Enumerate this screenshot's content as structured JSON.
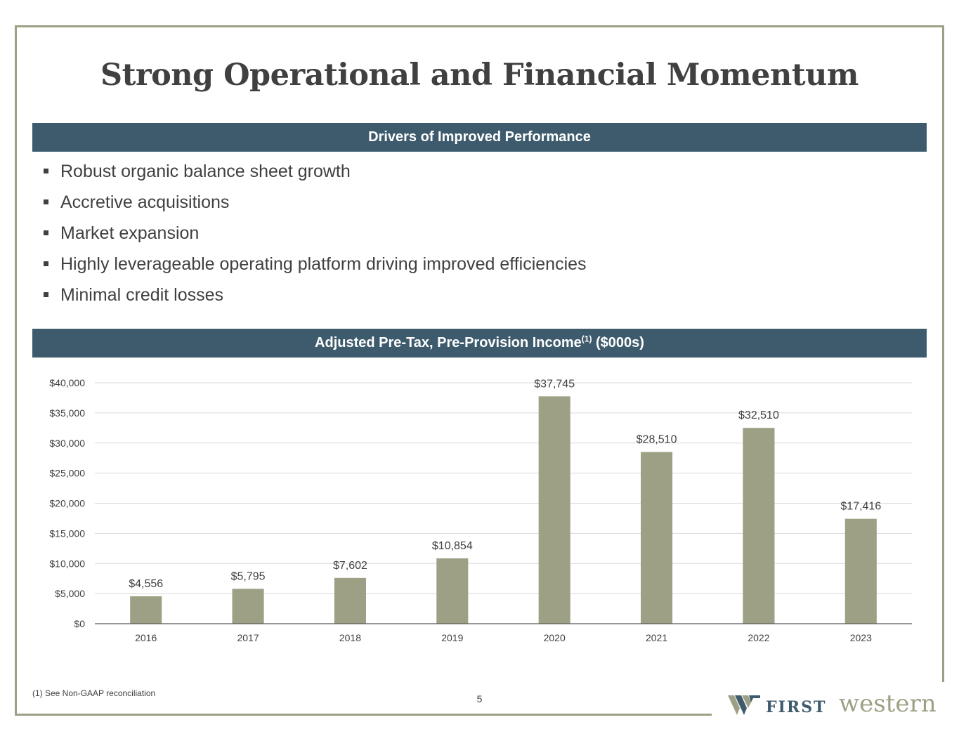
{
  "title": "Strong Operational and Financial Momentum",
  "drivers": {
    "header": "Drivers of Improved Performance",
    "items": [
      "Robust organic balance sheet growth",
      "Accretive acquisitions",
      "Market expansion",
      "Highly leverageable operating platform driving improved efficiencies",
      "Minimal credit losses"
    ]
  },
  "chart_header": {
    "main": "Adjusted Pre-Tax, Pre-Provision Income",
    "superscript": "(1)",
    "suffix": "($000s)"
  },
  "chart_data": {
    "type": "bar",
    "categories": [
      "2016",
      "2017",
      "2018",
      "2019",
      "2020",
      "2021",
      "2022",
      "2023"
    ],
    "values": [
      4556,
      5795,
      7602,
      10854,
      37745,
      28510,
      32510,
      17416
    ],
    "data_labels": [
      "$4,556",
      "$5,795",
      "$7,602",
      "$10,854",
      "$37,745",
      "$28,510",
      "$32,510",
      "$17,416"
    ],
    "yticks": [
      0,
      5000,
      10000,
      15000,
      20000,
      25000,
      30000,
      35000,
      40000
    ],
    "ytick_labels": [
      "$0",
      "$5,000",
      "$10,000",
      "$15,000",
      "$20,000",
      "$25,000",
      "$30,000",
      "$35,000",
      "$40,000"
    ],
    "ylim": [
      0,
      40000
    ],
    "grid": true,
    "bar_color": "#9da084"
  },
  "footnote": "(1)  See Non-GAAP reconciliation",
  "page_number": "5",
  "logo": {
    "first": "FIRST",
    "western": "western"
  },
  "colors": {
    "band": "#3e5b6e",
    "frame": "#9da084",
    "text": "#404040"
  }
}
